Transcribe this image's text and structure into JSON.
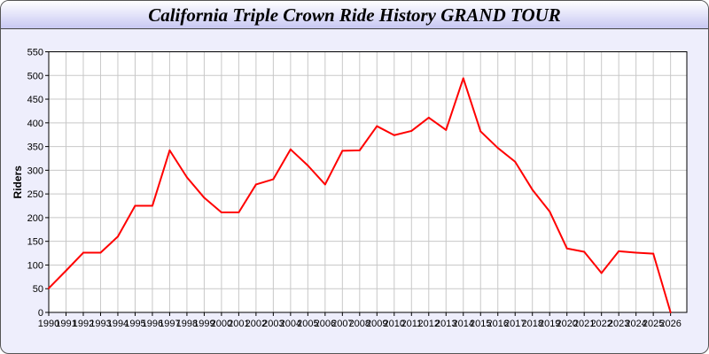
{
  "chart_data": {
    "type": "line",
    "title": "California Triple Crown Ride History GRAND TOUR",
    "xlabel": "",
    "ylabel": "Riders",
    "ylim": [
      0,
      550
    ],
    "yticks": [
      0,
      50,
      100,
      150,
      200,
      250,
      300,
      350,
      400,
      450,
      500,
      550
    ],
    "grid": true,
    "line_color": "#ff0000",
    "x": [
      1990,
      1991,
      1992,
      1993,
      1994,
      1995,
      1996,
      1997,
      1998,
      1999,
      2000,
      2001,
      2002,
      2003,
      2004,
      2005,
      2006,
      2007,
      2008,
      2009,
      2010,
      2011,
      2012,
      2013,
      2014,
      2015,
      2016,
      2017,
      2018,
      2019,
      2020,
      2021,
      2022,
      2023,
      2024,
      2025,
      2026
    ],
    "values": [
      51,
      88,
      126,
      126,
      160,
      225,
      225,
      342,
      285,
      242,
      211,
      211,
      270,
      281,
      344,
      310,
      270,
      341,
      342,
      393,
      374,
      383,
      411,
      385,
      494,
      382,
      347,
      318,
      259,
      213,
      135,
      128,
      83,
      129,
      126,
      124,
      0
    ]
  }
}
